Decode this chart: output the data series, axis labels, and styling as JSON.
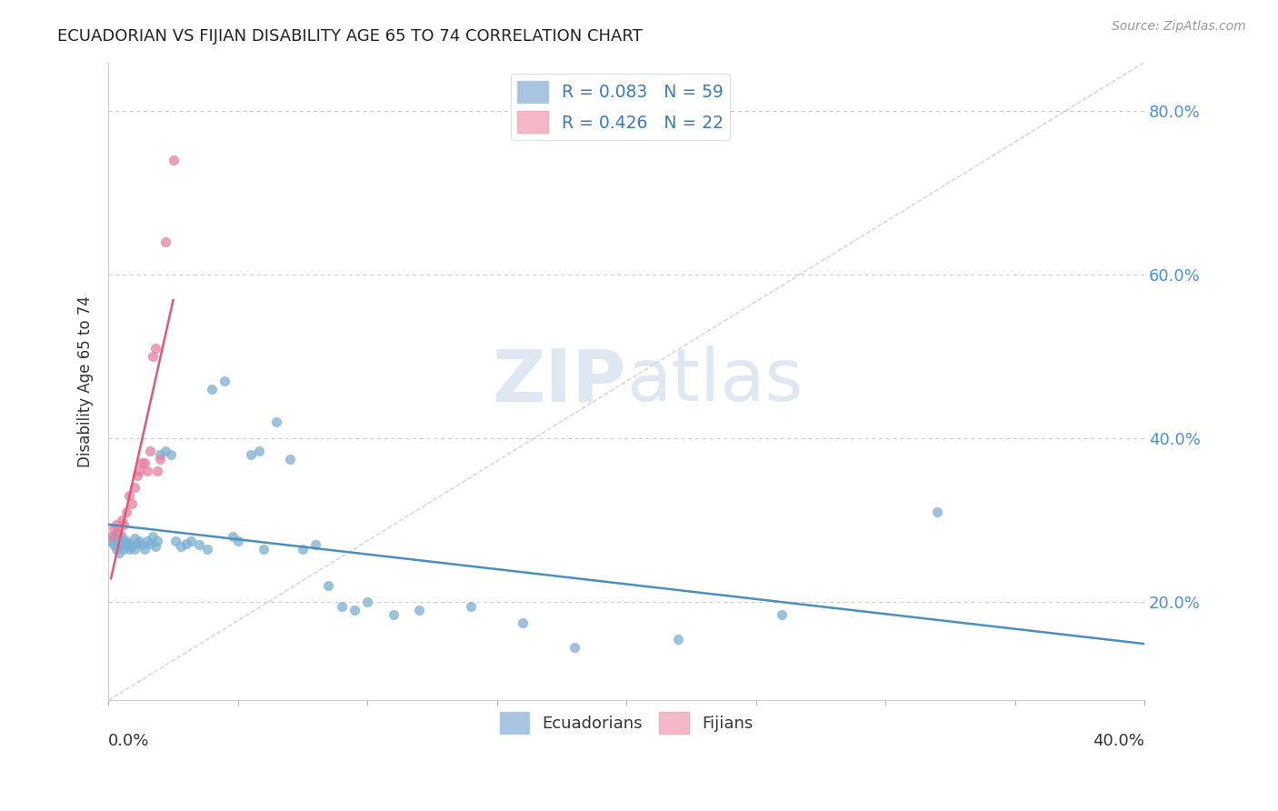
{
  "title": "ECUADORIAN VS FIJIAN DISABILITY AGE 65 TO 74 CORRELATION CHART",
  "source": "Source: ZipAtlas.com",
  "ylabel": "Disability Age 65 to 74",
  "ecuadorians": {
    "color": "#7bafd4",
    "R": 0.083,
    "N": 59,
    "x": [
      0.001,
      0.002,
      0.002,
      0.003,
      0.003,
      0.004,
      0.004,
      0.005,
      0.005,
      0.006,
      0.006,
      0.007,
      0.007,
      0.008,
      0.008,
      0.009,
      0.01,
      0.01,
      0.011,
      0.012,
      0.013,
      0.014,
      0.015,
      0.016,
      0.017,
      0.018,
      0.019,
      0.02,
      0.022,
      0.024,
      0.026,
      0.028,
      0.03,
      0.032,
      0.035,
      0.038,
      0.04,
      0.045,
      0.048,
      0.05,
      0.055,
      0.058,
      0.06,
      0.065,
      0.07,
      0.075,
      0.08,
      0.085,
      0.09,
      0.095,
      0.1,
      0.11,
      0.12,
      0.14,
      0.16,
      0.18,
      0.22,
      0.26,
      0.32
    ],
    "y": [
      0.275,
      0.27,
      0.28,
      0.265,
      0.285,
      0.26,
      0.275,
      0.27,
      0.28,
      0.265,
      0.275,
      0.27,
      0.275,
      0.265,
      0.272,
      0.268,
      0.265,
      0.278,
      0.272,
      0.275,
      0.27,
      0.265,
      0.275,
      0.272,
      0.28,
      0.268,
      0.275,
      0.38,
      0.385,
      0.38,
      0.275,
      0.268,
      0.272,
      0.275,
      0.27,
      0.265,
      0.46,
      0.47,
      0.28,
      0.275,
      0.38,
      0.385,
      0.265,
      0.42,
      0.375,
      0.265,
      0.27,
      0.22,
      0.195,
      0.19,
      0.2,
      0.185,
      0.19,
      0.195,
      0.175,
      0.145,
      0.155,
      0.185,
      0.31
    ]
  },
  "fijians": {
    "color": "#e87fa0",
    "R": 0.426,
    "N": 22,
    "x": [
      0.001,
      0.002,
      0.003,
      0.004,
      0.005,
      0.006,
      0.007,
      0.008,
      0.009,
      0.01,
      0.011,
      0.012,
      0.013,
      0.014,
      0.015,
      0.016,
      0.017,
      0.018,
      0.019,
      0.02,
      0.022,
      0.025
    ],
    "y": [
      0.28,
      0.29,
      0.295,
      0.285,
      0.3,
      0.295,
      0.31,
      0.33,
      0.32,
      0.34,
      0.355,
      0.36,
      0.37,
      0.37,
      0.36,
      0.385,
      0.5,
      0.51,
      0.36,
      0.375,
      0.64,
      0.74
    ]
  },
  "watermark": "ZIPatlas",
  "xlim": [
    0.0,
    0.4
  ],
  "ylim": [
    0.08,
    0.86
  ],
  "xticks": [
    0.0,
    0.05,
    0.1,
    0.15,
    0.2,
    0.25,
    0.3,
    0.35,
    0.4
  ],
  "yticks_right": [
    0.2,
    0.4,
    0.6,
    0.8
  ],
  "background_color": "#ffffff",
  "grid_color": "#c8c8c8",
  "ecu_trend_color": "#4a8fc0",
  "fij_trend_color": "#e05878",
  "diag_color": "#c8c8c8"
}
